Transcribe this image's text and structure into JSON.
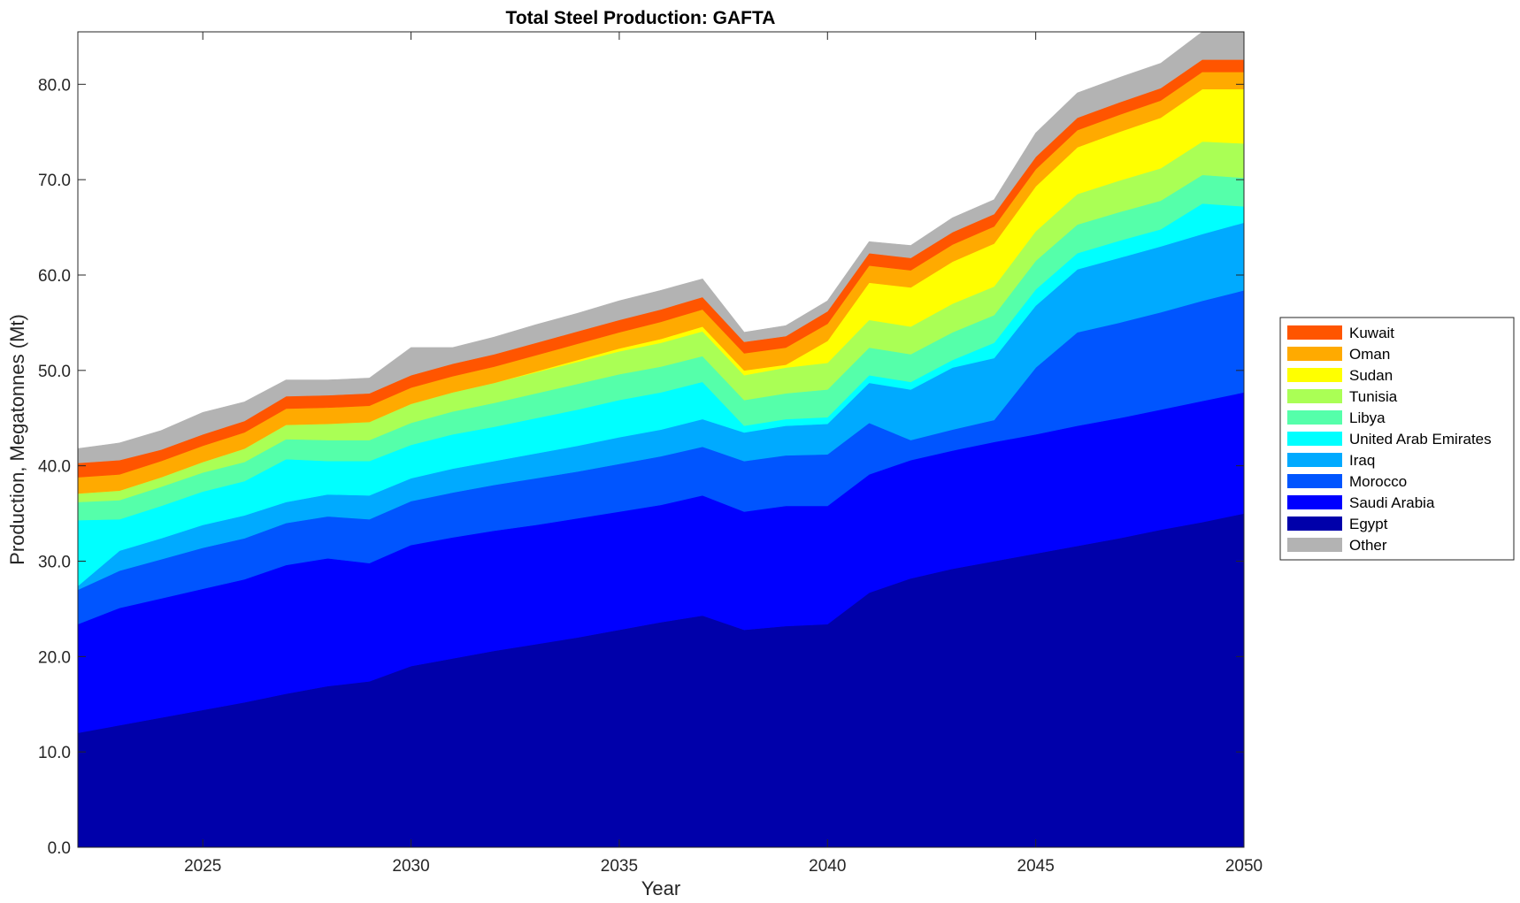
{
  "chart_data": {
    "type": "area",
    "stacked": true,
    "title": "Total Steel Production: GAFTA",
    "xlabel": "Year",
    "ylabel": "Production, Megatonnes (Mt)",
    "xlim": [
      2022,
      2050
    ],
    "ylim": [
      0,
      85.5
    ],
    "x_ticks": [
      2025,
      2030,
      2035,
      2040,
      2045,
      2050
    ],
    "x_tick_labels": [
      "2025",
      "2030",
      "2035",
      "2040",
      "2045",
      "2050"
    ],
    "y_ticks": [
      0,
      10,
      20,
      30,
      40,
      50,
      60,
      70,
      80
    ],
    "y_tick_labels": [
      "0.0",
      "10.0",
      "20.0",
      "30.0",
      "40.0",
      "50.0",
      "60.0",
      "70.0",
      "80.0"
    ],
    "grid": false,
    "legend_position": "right",
    "x": [
      2022,
      2023,
      2024,
      2025,
      2026,
      2027,
      2028,
      2029,
      2030,
      2031,
      2032,
      2033,
      2034,
      2035,
      2036,
      2037,
      2038,
      2039,
      2040,
      2041,
      2042,
      2043,
      2044,
      2045,
      2046,
      2047,
      2048,
      2049,
      2050
    ],
    "series": [
      {
        "name": "Egypt",
        "color": "#0000AA",
        "values": [
          12.0,
          12.8,
          13.6,
          14.4,
          15.2,
          16.1,
          16.9,
          17.4,
          19.0,
          19.8,
          20.6,
          21.3,
          22.0,
          22.8,
          23.6,
          24.3,
          22.8,
          23.2,
          23.4,
          26.7,
          28.2,
          29.2,
          30.0,
          30.8,
          31.6,
          32.4,
          33.3,
          34.1,
          35.0
        ]
      },
      {
        "name": "Saudi Arabia",
        "color": "#0000FF",
        "values": [
          11.4,
          12.3,
          12.5,
          12.7,
          12.9,
          13.5,
          13.4,
          12.4,
          12.7,
          12.7,
          12.6,
          12.5,
          12.5,
          12.4,
          12.3,
          12.6,
          12.4,
          12.6,
          12.4,
          12.4,
          12.4,
          12.4,
          12.5,
          12.5,
          12.6,
          12.6,
          12.6,
          12.7,
          12.7
        ]
      },
      {
        "name": "Morocco",
        "color": "#0055FF",
        "values": [
          3.6,
          3.9,
          4.1,
          4.3,
          4.3,
          4.4,
          4.4,
          4.6,
          4.6,
          4.7,
          4.8,
          4.9,
          4.9,
          5.0,
          5.1,
          5.1,
          5.3,
          5.3,
          5.4,
          5.4,
          2.1,
          2.2,
          2.3,
          7.0,
          9.8,
          10.0,
          10.2,
          10.5,
          10.7
        ]
      },
      {
        "name": "Iraq",
        "color": "#00AAFF",
        "values": [
          0.4,
          2.1,
          2.2,
          2.4,
          2.4,
          2.2,
          2.3,
          2.5,
          2.4,
          2.5,
          2.5,
          2.6,
          2.7,
          2.8,
          2.8,
          2.9,
          3.0,
          3.1,
          3.2,
          4.2,
          5.3,
          6.5,
          6.5,
          6.5,
          6.6,
          6.8,
          6.9,
          7.0,
          7.1
        ]
      },
      {
        "name": "United Arab Emirates",
        "color": "#00FFFF",
        "values": [
          6.9,
          3.3,
          3.4,
          3.5,
          3.6,
          4.5,
          3.5,
          3.6,
          3.5,
          3.6,
          3.6,
          3.7,
          3.8,
          3.9,
          3.9,
          3.9,
          0.7,
          0.7,
          0.7,
          0.8,
          0.8,
          0.8,
          1.6,
          1.7,
          1.7,
          1.8,
          1.8,
          3.2,
          1.7
        ]
      },
      {
        "name": "Libya",
        "color": "#55FFAA",
        "values": [
          1.9,
          2.0,
          2.0,
          2.0,
          2.0,
          2.1,
          2.2,
          2.2,
          2.3,
          2.4,
          2.5,
          2.6,
          2.7,
          2.7,
          2.7,
          2.7,
          2.7,
          2.7,
          2.9,
          2.9,
          2.9,
          2.9,
          2.9,
          3.0,
          3.0,
          3.0,
          3.0,
          3.0,
          3.0
        ]
      },
      {
        "name": "Tunisia",
        "color": "#AAFF55",
        "values": [
          0.9,
          1.0,
          1.0,
          1.1,
          1.4,
          1.5,
          1.7,
          1.9,
          2.0,
          2.0,
          2.1,
          2.2,
          2.3,
          2.4,
          2.5,
          2.6,
          2.6,
          2.7,
          2.8,
          2.9,
          2.9,
          3.0,
          3.0,
          3.1,
          3.2,
          3.3,
          3.4,
          3.5,
          3.6
        ]
      },
      {
        "name": "Sudan",
        "color": "#FFFF00",
        "values": [
          0.0,
          0.0,
          0.0,
          0.0,
          0.0,
          0.0,
          0.0,
          0.0,
          0.0,
          0.0,
          0.0,
          0.1,
          0.2,
          0.3,
          0.4,
          0.5,
          0.5,
          0.3,
          2.3,
          3.9,
          4.1,
          4.4,
          4.5,
          4.7,
          4.9,
          5.1,
          5.3,
          5.5,
          5.7
        ]
      },
      {
        "name": "Oman",
        "color": "#FFAA00",
        "values": [
          1.7,
          1.7,
          1.7,
          1.7,
          1.7,
          1.7,
          1.7,
          1.7,
          1.7,
          1.7,
          1.7,
          1.7,
          1.7,
          1.7,
          1.8,
          1.8,
          1.8,
          1.8,
          1.8,
          1.8,
          1.8,
          1.8,
          1.8,
          1.8,
          1.8,
          1.8,
          1.8,
          1.8,
          1.8
        ]
      },
      {
        "name": "Kuwait",
        "color": "#FF5500",
        "values": [
          1.5,
          1.5,
          1.2,
          1.2,
          1.2,
          1.3,
          1.3,
          1.3,
          1.3,
          1.3,
          1.3,
          1.3,
          1.3,
          1.3,
          1.3,
          1.3,
          1.2,
          1.2,
          1.3,
          1.3,
          1.3,
          1.3,
          1.3,
          1.3,
          1.3,
          1.3,
          1.3,
          1.3,
          1.3
        ]
      },
      {
        "name": "Other",
        "color": "#B3B3B3",
        "values": [
          1.5,
          1.8,
          2.0,
          2.3,
          2.0,
          1.7,
          1.6,
          1.6,
          2.9,
          1.7,
          1.8,
          1.9,
          1.9,
          2.0,
          2.0,
          1.9,
          1.0,
          1.1,
          1.1,
          1.2,
          1.3,
          1.5,
          1.5,
          2.5,
          2.6,
          2.6,
          2.6,
          2.9,
          3.1
        ]
      }
    ],
    "legend_order": [
      "Kuwait",
      "Oman",
      "Sudan",
      "Tunisia",
      "Libya",
      "United Arab Emirates",
      "Iraq",
      "Morocco",
      "Saudi Arabia",
      "Egypt",
      "Other"
    ]
  }
}
